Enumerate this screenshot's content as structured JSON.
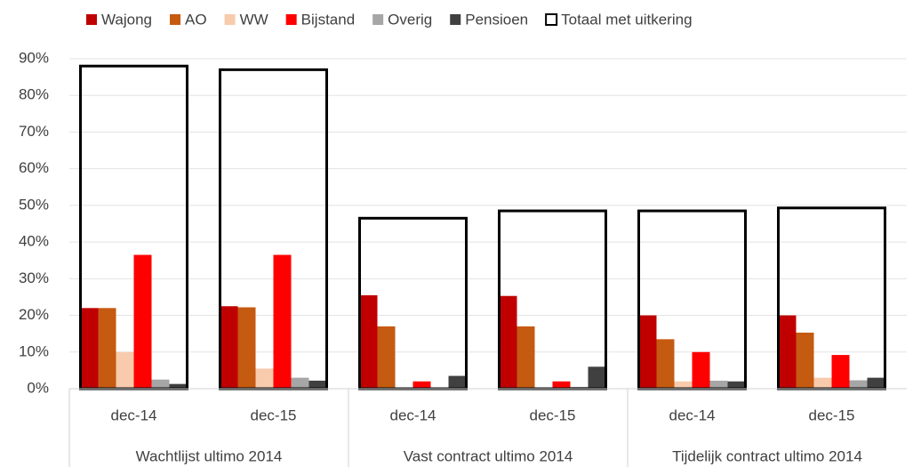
{
  "chart_data": {
    "type": "bar",
    "categories": [
      "dec-14",
      "dec-15",
      "dec-14",
      "dec-15",
      "dec-14",
      "dec-15"
    ],
    "groups": [
      "Wachtlijst ultimo 2014",
      "Vast contract ultimo 2014",
      "Tijdelijk contract ultimo 2014"
    ],
    "series": [
      {
        "name": "Wajong",
        "color": "#c00000",
        "values": [
          22,
          22.5,
          25.5,
          25.3,
          20,
          20
        ]
      },
      {
        "name": "AO",
        "color": "#c55a11",
        "values": [
          22,
          22.2,
          17,
          17,
          13.5,
          15.3
        ]
      },
      {
        "name": "WW",
        "color": "#f8cbad",
        "values": [
          10,
          5.5,
          0.3,
          0.3,
          2,
          3
        ]
      },
      {
        "name": "Bijstand",
        "color": "#ff0000",
        "values": [
          36.5,
          36.5,
          2,
          2,
          10,
          9.2
        ]
      },
      {
        "name": "Overig",
        "color": "#a6a6a6",
        "values": [
          2.5,
          3,
          0.3,
          0.5,
          2.2,
          2.3
        ]
      },
      {
        "name": "Pensioen",
        "color": "#404040",
        "values": [
          1.3,
          2.2,
          3.5,
          6,
          2,
          3
        ]
      },
      {
        "name": "Totaal met uitkering",
        "color": "#000000",
        "outline": true,
        "values": [
          88,
          87,
          46.5,
          48.5,
          48.5,
          49.3
        ]
      }
    ],
    "ylim": [
      0,
      90
    ],
    "yticks": [
      {
        "value": 0,
        "label": "0%"
      },
      {
        "value": 10,
        "label": "10%"
      },
      {
        "value": 20,
        "label": "20%"
      },
      {
        "value": 30,
        "label": "30%"
      },
      {
        "value": 40,
        "label": "40%"
      },
      {
        "value": 50,
        "label": "50%"
      },
      {
        "value": 60,
        "label": "60%"
      },
      {
        "value": 70,
        "label": "70%"
      },
      {
        "value": 80,
        "label": "80%"
      },
      {
        "value": 90,
        "label": "90%"
      }
    ],
    "grid": true,
    "legend": "top"
  }
}
